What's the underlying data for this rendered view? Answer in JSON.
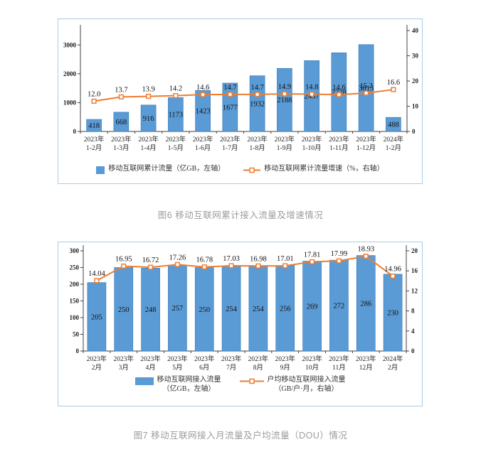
{
  "page": {
    "background": "#ffffff"
  },
  "colors": {
    "bar_fill": "#5B9BD5",
    "bar_stroke": "#2E75B6",
    "line_color": "#ED7D31",
    "marker_fill": "#FFFFFF",
    "card_border": "#A8CBEA",
    "caption_gray": "#9C9C9C"
  },
  "chart_data": [
    {
      "type": "bar",
      "combo": "bar+line",
      "title": "图6 移动互联网累计接入流量及增速情况",
      "categories": [
        [
          "2023年",
          "1-2月"
        ],
        [
          "2023年",
          "1-3月"
        ],
        [
          "2023年",
          "1-4月"
        ],
        [
          "2023年",
          "1-5月"
        ],
        [
          "2023年",
          "1-6月"
        ],
        [
          "2023年",
          "1-7月"
        ],
        [
          "2023年",
          "1-8月"
        ],
        [
          "2023年",
          "1-9月"
        ],
        [
          "2023年",
          "1-10月"
        ],
        [
          "2023年",
          "1-11月"
        ],
        [
          "2023年",
          "1-12月"
        ],
        [
          "2024年",
          "1-2月"
        ]
      ],
      "series": [
        {
          "name": [
            "移动互联网累计流量（亿GB，左轴）"
          ],
          "type": "bar",
          "axis": "left",
          "values": [
            418,
            668,
            916,
            1173,
            1423,
            1677,
            1932,
            2188,
            2457,
            2728,
            3013,
            488
          ]
        },
        {
          "name": [
            "移动互联网累计流量增速（%，右轴）"
          ],
          "type": "line",
          "axis": "right",
          "values": [
            "12.0",
            "13.7",
            "13.9",
            "14.2",
            "14.6",
            "14.7",
            "14.7",
            "14.9",
            "14.8",
            "14.6",
            "15.2",
            "16.6"
          ]
        }
      ],
      "left_axis": {
        "min": 0,
        "max": 3500,
        "tick_labels": [
          "0",
          "1000",
          "2000",
          "3000"
        ],
        "tick_step": 1000
      },
      "right_axis": {
        "min": 0,
        "max": 40,
        "tick_labels": [
          "0",
          "10",
          "20",
          "30",
          "40"
        ],
        "tick_step": 10
      },
      "grid": false,
      "legend_position": "bottom",
      "value_labels": "shown"
    },
    {
      "type": "bar",
      "combo": "bar+line",
      "title": "图7 移动互联网接入月流量及户均流量（DOU）情况",
      "categories": [
        [
          "2023年",
          "2月"
        ],
        [
          "2023年",
          "3月"
        ],
        [
          "2023年",
          "4月"
        ],
        [
          "2023年",
          "5月"
        ],
        [
          "2023年",
          "6月"
        ],
        [
          "2023年",
          "7月"
        ],
        [
          "2023年",
          "8月"
        ],
        [
          "2023年",
          "9月"
        ],
        [
          "2023年",
          "10月"
        ],
        [
          "2023年",
          "11月"
        ],
        [
          "2023年",
          "12月"
        ],
        [
          "2024年",
          "2月"
        ]
      ],
      "series": [
        {
          "name": [
            "移动互联网接入流量",
            "（亿GB，左轴）"
          ],
          "type": "bar",
          "axis": "left",
          "values": [
            205,
            250,
            248,
            257,
            250,
            254,
            254,
            256,
            269,
            272,
            286,
            230
          ]
        },
        {
          "name": [
            "户均移动互联网接入流量",
            "（GB/户·月，右轴）"
          ],
          "type": "line",
          "axis": "right",
          "values": [
            "14.04",
            "16.95",
            "16.72",
            "17.26",
            "16.78",
            "17.03",
            "16.98",
            "17.01",
            "17.81",
            "17.99",
            "18.93",
            "14.96"
          ]
        }
      ],
      "left_axis": {
        "min": 0,
        "max": 300,
        "tick_labels": [
          "0",
          "50",
          "100",
          "150",
          "200",
          "250",
          "300"
        ],
        "tick_step": 50
      },
      "right_axis": {
        "min": 0,
        "max": 20,
        "tick_labels": [
          "0",
          "4",
          "8",
          "12",
          "16",
          "20"
        ],
        "tick_step": 4
      },
      "grid": false,
      "legend_position": "bottom",
      "value_labels": "shown"
    }
  ]
}
